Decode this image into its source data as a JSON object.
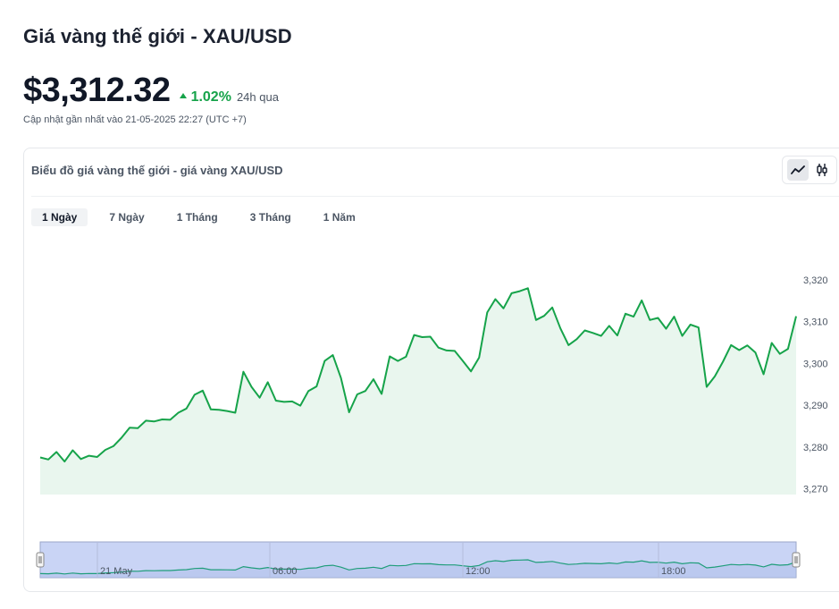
{
  "header": {
    "title": "Giá vàng thế giới - XAU/USD",
    "price": "$3,312.32",
    "change": "1.02%",
    "change_period": "24h qua",
    "updated": "Cập nhật gần nhất vào 21-05-2025 22:27 (UTC +7)"
  },
  "card": {
    "title": "Biểu đồ giá vàng thế giới - giá vàng XAU/USD",
    "chart_types": [
      "line-chart-icon",
      "candlestick-icon"
    ]
  },
  "tabs": [
    {
      "label": "1 Ngày",
      "active": true
    },
    {
      "label": "7 Ngày",
      "active": false
    },
    {
      "label": "1 Tháng",
      "active": false
    },
    {
      "label": "3 Tháng",
      "active": false
    },
    {
      "label": "1 Năm",
      "active": false
    }
  ],
  "colors": {
    "line": "#16a34a",
    "area": "#e9f6ee",
    "navigator_fill": "#c9d4f5",
    "accent_up": "#16a34a"
  },
  "chart_data": {
    "type": "area",
    "y_ticks": [
      "3,270",
      "3,280",
      "3,290",
      "3,300",
      "3,310",
      "3,320"
    ],
    "ylim": [
      3270,
      3325
    ],
    "navigator_labels": [
      "21 May",
      "06:00",
      "12:00",
      "18:00"
    ],
    "values": [
      3277.5,
      3277,
      3278.8,
      3276.5,
      3279.2,
      3277.1,
      3277.9,
      3277.6,
      3279.3,
      3280.2,
      3282.2,
      3284.6,
      3284.5,
      3286.3,
      3286.1,
      3286.6,
      3286.5,
      3288.2,
      3289.2,
      3292.5,
      3293.5,
      3289,
      3288.9,
      3288.6,
      3288.2,
      3298,
      3294.4,
      3291.8,
      3295.5,
      3291.1,
      3290.8,
      3290.9,
      3289.9,
      3293.4,
      3294.5,
      3300.6,
      3302,
      3296.5,
      3288.3,
      3292.6,
      3293.4,
      3296.2,
      3292.7,
      3301.7,
      3300.6,
      3301.6,
      3306.8,
      3306.3,
      3306.4,
      3303.8,
      3303.1,
      3303,
      3300.6,
      3298.1,
      3301.4,
      3312.2,
      3315.4,
      3313.2,
      3316.8,
      3317.3,
      3318,
      3310.4,
      3311.4,
      3313.4,
      3308.4,
      3304.4,
      3305.8,
      3307.9,
      3307.3,
      3306.6,
      3309,
      3306.7,
      3311.9,
      3311.2,
      3315.1,
      3310.4,
      3310.9,
      3308.3,
      3311.2,
      3306.6,
      3309.3,
      3308.6,
      3294.4,
      3296.9,
      3300.4,
      3304.4,
      3303.2,
      3304.3,
      3302.6,
      3297.4,
      3304.9,
      3302.3,
      3303.5,
      3311.3
    ]
  }
}
